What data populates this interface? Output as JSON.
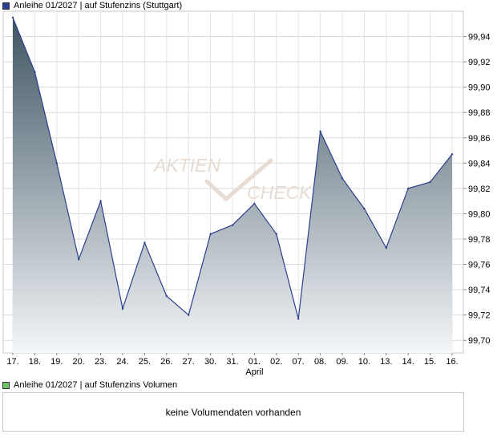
{
  "price_legend": {
    "label": "Anleihe 01/2027 | auf Stufenzins (Stuttgart)",
    "color": "#2b3f8f"
  },
  "volume_legend": {
    "label": "Anleihe 01/2027 | auf Stufenzins Volumen",
    "color": "#6cc36c"
  },
  "volume_panel": {
    "message": "keine Volumendaten vorhanden"
  },
  "watermark": {
    "word1": "AKTIEN",
    "word2": "CHECK"
  },
  "chart_data": {
    "type": "area",
    "title": "Anleihe 01/2027 | auf Stufenzins (Stuttgart)",
    "xlabel": "April",
    "ylabel": "",
    "categories": [
      "17.",
      "18.",
      "19.",
      "20.",
      "23.",
      "24.",
      "25.",
      "26.",
      "27.",
      "30.",
      "31.",
      "01.",
      "02.",
      "07.",
      "08.",
      "09.",
      "10.",
      "13.",
      "14.",
      "15.",
      "16."
    ],
    "values": [
      99.955,
      99.912,
      99.84,
      99.764,
      99.81,
      99.725,
      99.777,
      99.735,
      99.72,
      99.784,
      99.791,
      99.808,
      99.784,
      99.717,
      99.865,
      99.828,
      99.804,
      99.773,
      99.82,
      99.825,
      99.847
    ],
    "y_ticks": [
      "99,94",
      "99,92",
      "99,90",
      "99,88",
      "99,86",
      "99,84",
      "99,82",
      "99,80",
      "99,78",
      "99,76",
      "99,74",
      "99,72",
      "99,70"
    ],
    "ylim": [
      99.69,
      99.96
    ],
    "month_marker": {
      "label": "April",
      "at_category": "01."
    },
    "grid": true,
    "line_color": "#2b3f8f",
    "fill_top_color": "#3f5563",
    "fill_bottom_color": "#f4f6f8"
  }
}
